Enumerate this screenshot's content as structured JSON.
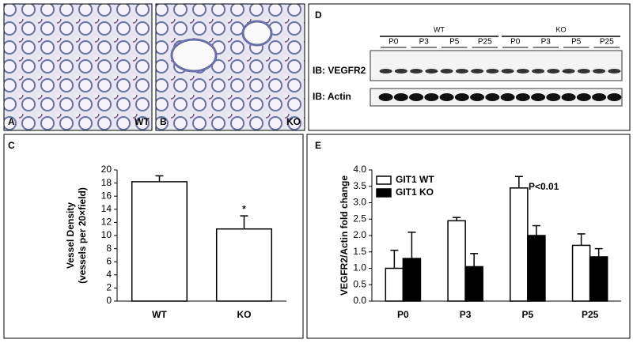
{
  "micrographs": [
    {
      "label": "A",
      "genotype": "WT"
    },
    {
      "label": "B",
      "genotype": "KO"
    }
  ],
  "blot": {
    "label": "D",
    "groups": [
      "WT",
      "KO"
    ],
    "lanes": [
      "P0",
      "P3",
      "P5",
      "P25",
      "P0",
      "P3",
      "P5",
      "P25"
    ],
    "rows": [
      "IB: VEGFR2",
      "IB: Actin"
    ]
  },
  "chart_data": [
    {
      "type": "bar",
      "label": "C",
      "ylabel": [
        "Vessel Density",
        "(vessels per 20×field)"
      ],
      "categories": [
        "WT",
        "KO"
      ],
      "series": [
        {
          "color": "#ffffff",
          "values": [
            18.2,
            11
          ],
          "errors": [
            0.9,
            2
          ]
        }
      ],
      "annotations": [
        "*"
      ],
      "ylim": [
        0,
        20
      ],
      "yticks": [
        0,
        2,
        4,
        6,
        8,
        10,
        12,
        14,
        16,
        18,
        20
      ]
    },
    {
      "type": "bar",
      "label": "E",
      "ylabel": [
        "VEGFR2/Actin fold change"
      ],
      "categories": [
        "P0",
        "P3",
        "P5",
        "P25"
      ],
      "series": [
        {
          "name": "GIT1 WT",
          "color": "#ffffff",
          "values": [
            1.0,
            2.45,
            3.45,
            1.7
          ],
          "errors": [
            0.55,
            0.1,
            0.35,
            0.35
          ]
        },
        {
          "name": "GIT1 KO",
          "color": "#000000",
          "values": [
            1.3,
            1.05,
            2.0,
            1.35
          ],
          "errors": [
            0.8,
            0.4,
            0.3,
            0.25
          ]
        }
      ],
      "annotations": [
        "P<0.01"
      ],
      "legend": "upper-left",
      "ylim": [
        0,
        4
      ],
      "yticks": [
        {
          "value": 0,
          "label": "0.0"
        },
        0.5,
        {
          "value": 1,
          "label": "1.0"
        },
        1.5,
        {
          "value": 2,
          "label": "2.0"
        },
        2.5,
        {
          "value": 3,
          "label": "3.0"
        },
        3.5,
        {
          "value": 4,
          "label": "4.0"
        }
      ]
    }
  ]
}
